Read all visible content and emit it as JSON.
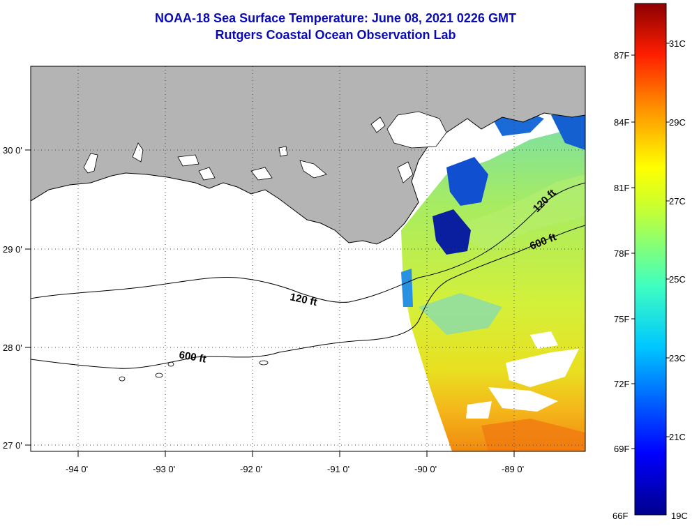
{
  "title": "NOAA-18 Sea Surface Temperature:  June 08, 2021 0226 GMT",
  "subtitle": "Rutgers Coastal Ocean Observation Lab",
  "lat_labels": [
    "30 0'",
    "29 0'",
    "28 0'",
    "27 0'"
  ],
  "lon_labels": [
    "-94 0'",
    "-93 0'",
    "-92 0'",
    "-91 0'",
    "-90 0'",
    "-89 0'"
  ],
  "contour_labels": {
    "a": "120 ft",
    "b": "600 ft",
    "c": "120 ft",
    "d": "600 ft"
  },
  "colorbar": {
    "fahrenheit": [
      "87F",
      "84F",
      "81F",
      "78F",
      "75F",
      "72F",
      "69F",
      "66F"
    ],
    "celsius": [
      "31C",
      "29C",
      "27C",
      "25C",
      "23C",
      "21C",
      "19C"
    ]
  },
  "colors": {
    "title": "#0a0ab4",
    "land": "#b4b4b4",
    "no_data": "#ffffff"
  }
}
